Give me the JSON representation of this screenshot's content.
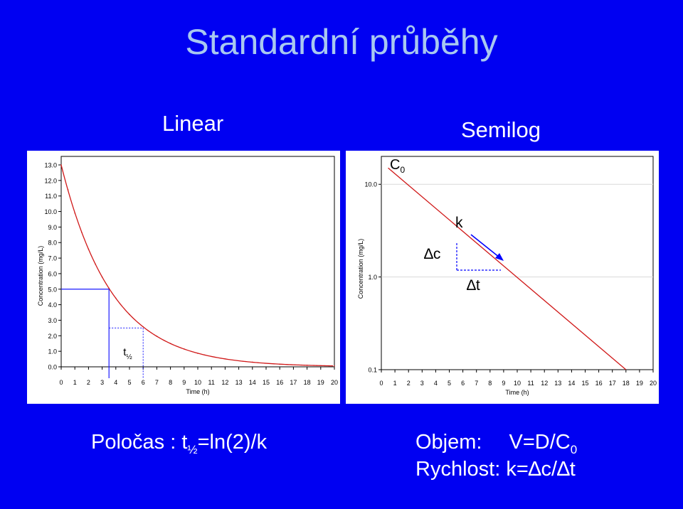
{
  "slide": {
    "title": "Standardní průběhy",
    "label_linear": "Linear",
    "label_semilog": "Semilog",
    "formula_left_prefix": "Poločas : t",
    "formula_left_sub": "½",
    "formula_left_suffix": "=ln(2)/k",
    "formula_right_1_label": "Objem:",
    "formula_right_1_value": "V=D/C",
    "formula_right_1_sub": "0",
    "formula_right_2": "Rychlost:  k=∆c/∆t"
  },
  "colors": {
    "background": "#0000f2",
    "title": "#a8c8f0",
    "curve": "#d01818",
    "guide": "#1a1aff",
    "arrow": "#0000ff"
  },
  "chart_data": [
    {
      "type": "line",
      "name": "linear",
      "xlabel": "Time (h)",
      "ylabel": "Concentration (mg/L)",
      "xlim": [
        0,
        20
      ],
      "ylim": [
        0,
        13
      ],
      "xticks": [
        "0",
        "1",
        "2",
        "3",
        "4",
        "5",
        "6",
        "7",
        "8",
        "9",
        "10",
        "11",
        "12",
        "13",
        "14",
        "15",
        "16",
        "17",
        "18",
        "19",
        "20"
      ],
      "yticks": [
        "0.0",
        "1.0",
        "2.0",
        "3.0",
        "4.0",
        "5.0",
        "6.0",
        "7.0",
        "8.0",
        "9.0",
        "10.0",
        "11.0",
        "12.0",
        "13.0"
      ],
      "curve": {
        "c0": 13.0,
        "k": 0.27
      },
      "x": [
        0,
        0.5,
        1,
        1.5,
        2,
        2.5,
        3,
        3.5,
        4,
        5,
        6,
        7,
        8,
        9,
        10,
        12,
        14,
        16,
        18,
        20
      ],
      "y": [
        13.0,
        11.4,
        9.9,
        8.66,
        7.58,
        6.62,
        5.78,
        5.06,
        4.42,
        3.37,
        2.58,
        1.97,
        1.5,
        1.15,
        0.87,
        0.51,
        0.3,
        0.17,
        0.1,
        0.06
      ],
      "annotations": {
        "half_life_label": "t",
        "half_life_sub": "½",
        "half_life_from": {
          "x": 3.5,
          "y": 5.0
        },
        "half_life_to": {
          "x": 6.0,
          "y": 2.5
        }
      }
    },
    {
      "type": "line",
      "name": "semilog",
      "xlabel": "Time (h)",
      "ylabel": "Concentration (mg/L)",
      "yscale": "log",
      "xlim": [
        0,
        20
      ],
      "ylim": [
        0.1,
        20
      ],
      "xticks": [
        "0",
        "1",
        "2",
        "3",
        "4",
        "5",
        "6",
        "7",
        "8",
        "9",
        "10",
        "11",
        "12",
        "13",
        "14",
        "15",
        "16",
        "17",
        "18",
        "19",
        "20"
      ],
      "yticks": [
        {
          "value": 10,
          "label": "10.0"
        },
        {
          "value": 1,
          "label": "1.0"
        },
        {
          "value": 0.1,
          "label": "0.1"
        }
      ],
      "line": {
        "x": [
          0.5,
          18.0
        ],
        "y": [
          15.0,
          0.1
        ]
      },
      "annotations": {
        "c0_label": "C",
        "c0_sub": "0",
        "k_label": "k",
        "dc_label": "∆c",
        "dt_label": "∆t"
      }
    }
  ]
}
